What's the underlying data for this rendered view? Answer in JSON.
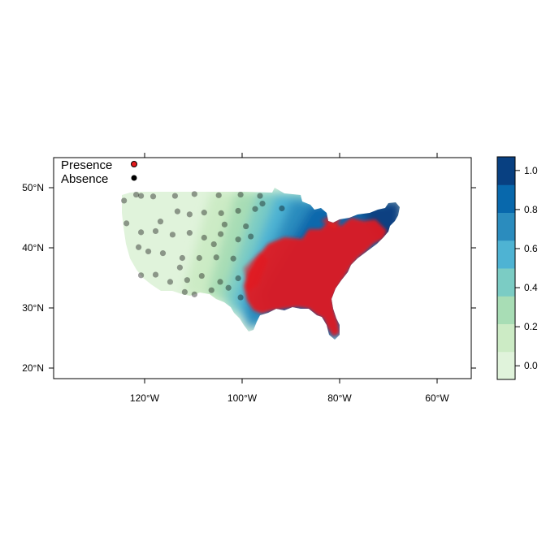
{
  "map": {
    "legend": {
      "presence_label": "Presence",
      "absence_label": "Absence",
      "presence_color": "#e41a1c",
      "absence_color": "#000000"
    },
    "x_tick_labels": [
      "120°W",
      "100°W",
      "80°W",
      "60°W"
    ],
    "y_tick_labels": [
      "50°N",
      "40°N",
      "30°N",
      "20°N"
    ],
    "colorbar": {
      "tick_labels": [
        "0.0",
        "0.2",
        "0.4",
        "0.6",
        "0.8",
        "1.0"
      ],
      "colors": [
        "#e0f3db",
        "#ccebc5",
        "#a8ddb5",
        "#7bccc4",
        "#4eb3d3",
        "#2b8cbe",
        "#0868ac",
        "#084081"
      ]
    }
  },
  "chart_data": {
    "type": "map",
    "extent": {
      "lon": [
        -139,
        -53
      ],
      "lat": [
        18,
        55
      ]
    },
    "xticks": [
      -120,
      -100,
      -80,
      -60
    ],
    "yticks": [
      50,
      40,
      30,
      20
    ],
    "legend_position": "top-left",
    "colorbar": {
      "range": [
        -0.07,
        1.07
      ],
      "ticks": [
        0.0,
        0.2,
        0.4,
        0.6,
        0.8,
        1.0
      ]
    },
    "absence_points": [
      [
        -124.5,
        47.8
      ],
      [
        -122,
        48.8
      ],
      [
        -121,
        48.6
      ],
      [
        -118.5,
        48.5
      ],
      [
        -114,
        48.6
      ],
      [
        -110,
        48.9
      ],
      [
        -105,
        48.7
      ],
      [
        -100.5,
        48.8
      ],
      [
        -96.5,
        48.6
      ],
      [
        -124,
        44
      ],
      [
        -121,
        42.5
      ],
      [
        -117,
        44.3
      ],
      [
        -113.5,
        46
      ],
      [
        -111,
        45.5
      ],
      [
        -108,
        45.8
      ],
      [
        -104.5,
        45.7
      ],
      [
        -101,
        46.1
      ],
      [
        -97.5,
        46.4
      ],
      [
        -121.5,
        40
      ],
      [
        -118,
        42.7
      ],
      [
        -114.5,
        42.1
      ],
      [
        -111,
        42.4
      ],
      [
        -108,
        41.6
      ],
      [
        -104.6,
        42.2
      ],
      [
        -101,
        41.3
      ],
      [
        -98.4,
        41.8
      ],
      [
        -119.5,
        39.3
      ],
      [
        -116.5,
        39
      ],
      [
        -112.5,
        38.2
      ],
      [
        -109,
        38.2
      ],
      [
        -105.5,
        38.3
      ],
      [
        -102,
        38.1
      ],
      [
        -121,
        35.3
      ],
      [
        -118,
        35.4
      ],
      [
        -115,
        34.2
      ],
      [
        -111.5,
        34.5
      ],
      [
        -108.5,
        35.2
      ],
      [
        -104.7,
        34.2
      ],
      [
        -101,
        34.8
      ],
      [
        -112,
        32.5
      ],
      [
        -110,
        32.1
      ],
      [
        -106.5,
        32.8
      ],
      [
        -103,
        33.2
      ],
      [
        -100.5,
        31.6
      ],
      [
        -103.8,
        43.8
      ],
      [
        -99.4,
        43.5
      ],
      [
        -106,
        40.5
      ],
      [
        -113,
        36.6
      ],
      [
        -96,
        47.3
      ],
      [
        -92,
        46.5
      ]
    ],
    "presence_region_note": "",
    "absence_region_note": ""
  }
}
